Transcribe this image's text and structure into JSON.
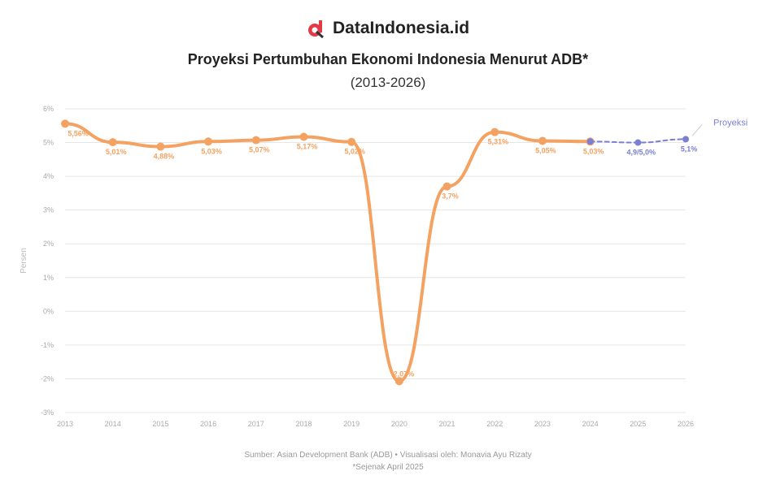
{
  "brand": {
    "name": "DataIndonesia.id",
    "logo_icon": "dataindonesia-logo-icon"
  },
  "colors": {
    "actual": "#f4a261",
    "projection": "#7b7fd4",
    "grid": "#e6e6e6",
    "logo": "#e63946"
  },
  "chart_data": {
    "type": "line",
    "title": "Proyeksi Pertumbuhan Ekonomi Indonesia Menurut ADB*",
    "subtitle": "(2013-2026)",
    "ylabel": "Persen",
    "ylim": [
      -3,
      6
    ],
    "grid": true,
    "x": [
      "2013",
      "2014",
      "2015",
      "2016",
      "2017",
      "2018",
      "2019",
      "2020",
      "2021",
      "2022",
      "2023",
      "2024",
      "2025",
      "2026"
    ],
    "yticks": [
      "6%",
      "5%",
      "4%",
      "3%",
      "2%",
      "1%",
      "0%",
      "-1%",
      "-2%",
      "-3%"
    ],
    "series": [
      {
        "name": "",
        "x": [
          "2013",
          "2014",
          "2015",
          "2016",
          "2017",
          "2018",
          "2019",
          "2020",
          "2021",
          "2022",
          "2023",
          "2024"
        ],
        "values": [
          5.56,
          5.01,
          4.88,
          5.03,
          5.07,
          5.17,
          5.02,
          -2.07,
          3.7,
          5.31,
          5.05,
          5.03
        ],
        "labels": [
          "5,56%",
          "5,01%",
          "4,88%",
          "5,03%",
          "5,07%",
          "5,17%",
          "5,02%",
          "-2,07%",
          "3,7%",
          "5,31%",
          "5,05%",
          "5,03%"
        ]
      },
      {
        "name": "Proyeksi",
        "x": [
          "2024",
          "2025",
          "2026"
        ],
        "values": [
          5.03,
          5.0,
          5.1
        ],
        "labels": [
          "",
          "4,9/5,0%",
          "5,1%"
        ]
      }
    ]
  },
  "footer": {
    "source": "Sumber: Asian Development Bank (ADB) • Visualisasi oleh: Monavia Ayu Rizaty",
    "note": "*Sejenak April 2025"
  }
}
